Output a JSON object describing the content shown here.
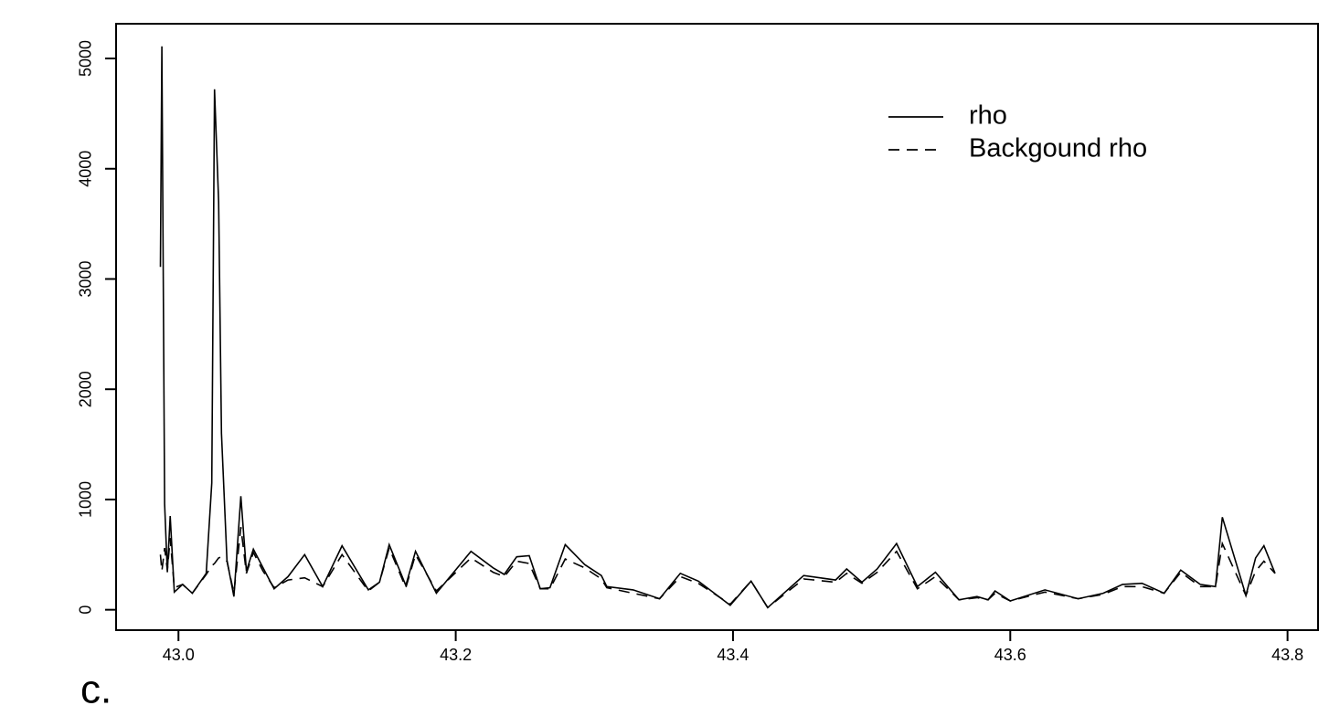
{
  "chart_data": {
    "type": "line",
    "panel_label": "c.",
    "x": [
      42.987,
      42.988,
      42.99,
      42.992,
      42.994,
      42.997,
      43.003,
      43.01,
      43.02,
      43.024,
      43.026,
      43.029,
      43.031,
      43.035,
      43.04,
      43.045,
      43.049,
      43.054,
      43.061,
      43.069,
      43.079,
      43.091,
      43.104,
      43.118,
      43.137,
      43.145,
      43.152,
      43.164,
      43.171,
      43.186,
      43.211,
      43.227,
      43.235,
      43.244,
      43.253,
      43.261,
      43.268,
      43.279,
      43.293,
      43.305,
      43.309,
      43.328,
      43.347,
      43.362,
      43.375,
      43.398,
      43.413,
      43.425,
      43.451,
      43.474,
      43.482,
      43.493,
      43.504,
      43.518,
      43.533,
      43.546,
      43.563,
      43.576,
      43.584,
      43.589,
      43.6,
      43.625,
      43.649,
      43.667,
      43.681,
      43.695,
      43.711,
      43.723,
      43.737,
      43.748,
      43.753,
      43.77,
      43.777,
      43.783,
      43.791
    ],
    "series": [
      {
        "name": "rho",
        "color": "#000000",
        "linestyle": "solid",
        "values": [
          3110,
          5110,
          960,
          340,
          850,
          160,
          230,
          150,
          330,
          1150,
          4720,
          3700,
          1600,
          450,
          120,
          1030,
          350,
          550,
          380,
          190,
          300,
          500,
          210,
          580,
          180,
          250,
          590,
          220,
          530,
          150,
          530,
          380,
          320,
          480,
          490,
          190,
          200,
          590,
          410,
          310,
          210,
          180,
          100,
          330,
          260,
          40,
          260,
          20,
          310,
          270,
          370,
          250,
          370,
          600,
          210,
          340,
          90,
          120,
          90,
          170,
          80,
          180,
          100,
          150,
          230,
          240,
          150,
          360,
          230,
          210,
          840,
          130,
          470,
          580,
          330
        ]
      },
      {
        "name": "Backgound rho",
        "color": "#000000",
        "linestyle": "dashed",
        "values": [
          500,
          350,
          560,
          360,
          650,
          200,
          230,
          150,
          320,
          400,
          420,
          470,
          480,
          440,
          150,
          750,
          330,
          520,
          350,
          200,
          270,
          290,
          210,
          500,
          170,
          250,
          560,
          200,
          500,
          170,
          470,
          340,
          300,
          440,
          420,
          190,
          190,
          460,
          380,
          280,
          200,
          150,
          100,
          300,
          240,
          50,
          260,
          20,
          280,
          250,
          330,
          240,
          340,
          530,
          190,
          300,
          90,
          110,
          90,
          150,
          80,
          160,
          100,
          140,
          210,
          210,
          150,
          340,
          210,
          210,
          600,
          130,
          350,
          440,
          330
        ]
      }
    ],
    "xlim": [
      42.955,
      43.822
    ],
    "ylim": [
      -185,
      5315
    ],
    "xticks": [
      {
        "value": 43,
        "label": "43.0"
      },
      43.2,
      43.4,
      43.6,
      43.8
    ],
    "yticks": [
      0,
      1000,
      2000,
      3000,
      4000,
      5000
    ],
    "legend": "top right"
  }
}
